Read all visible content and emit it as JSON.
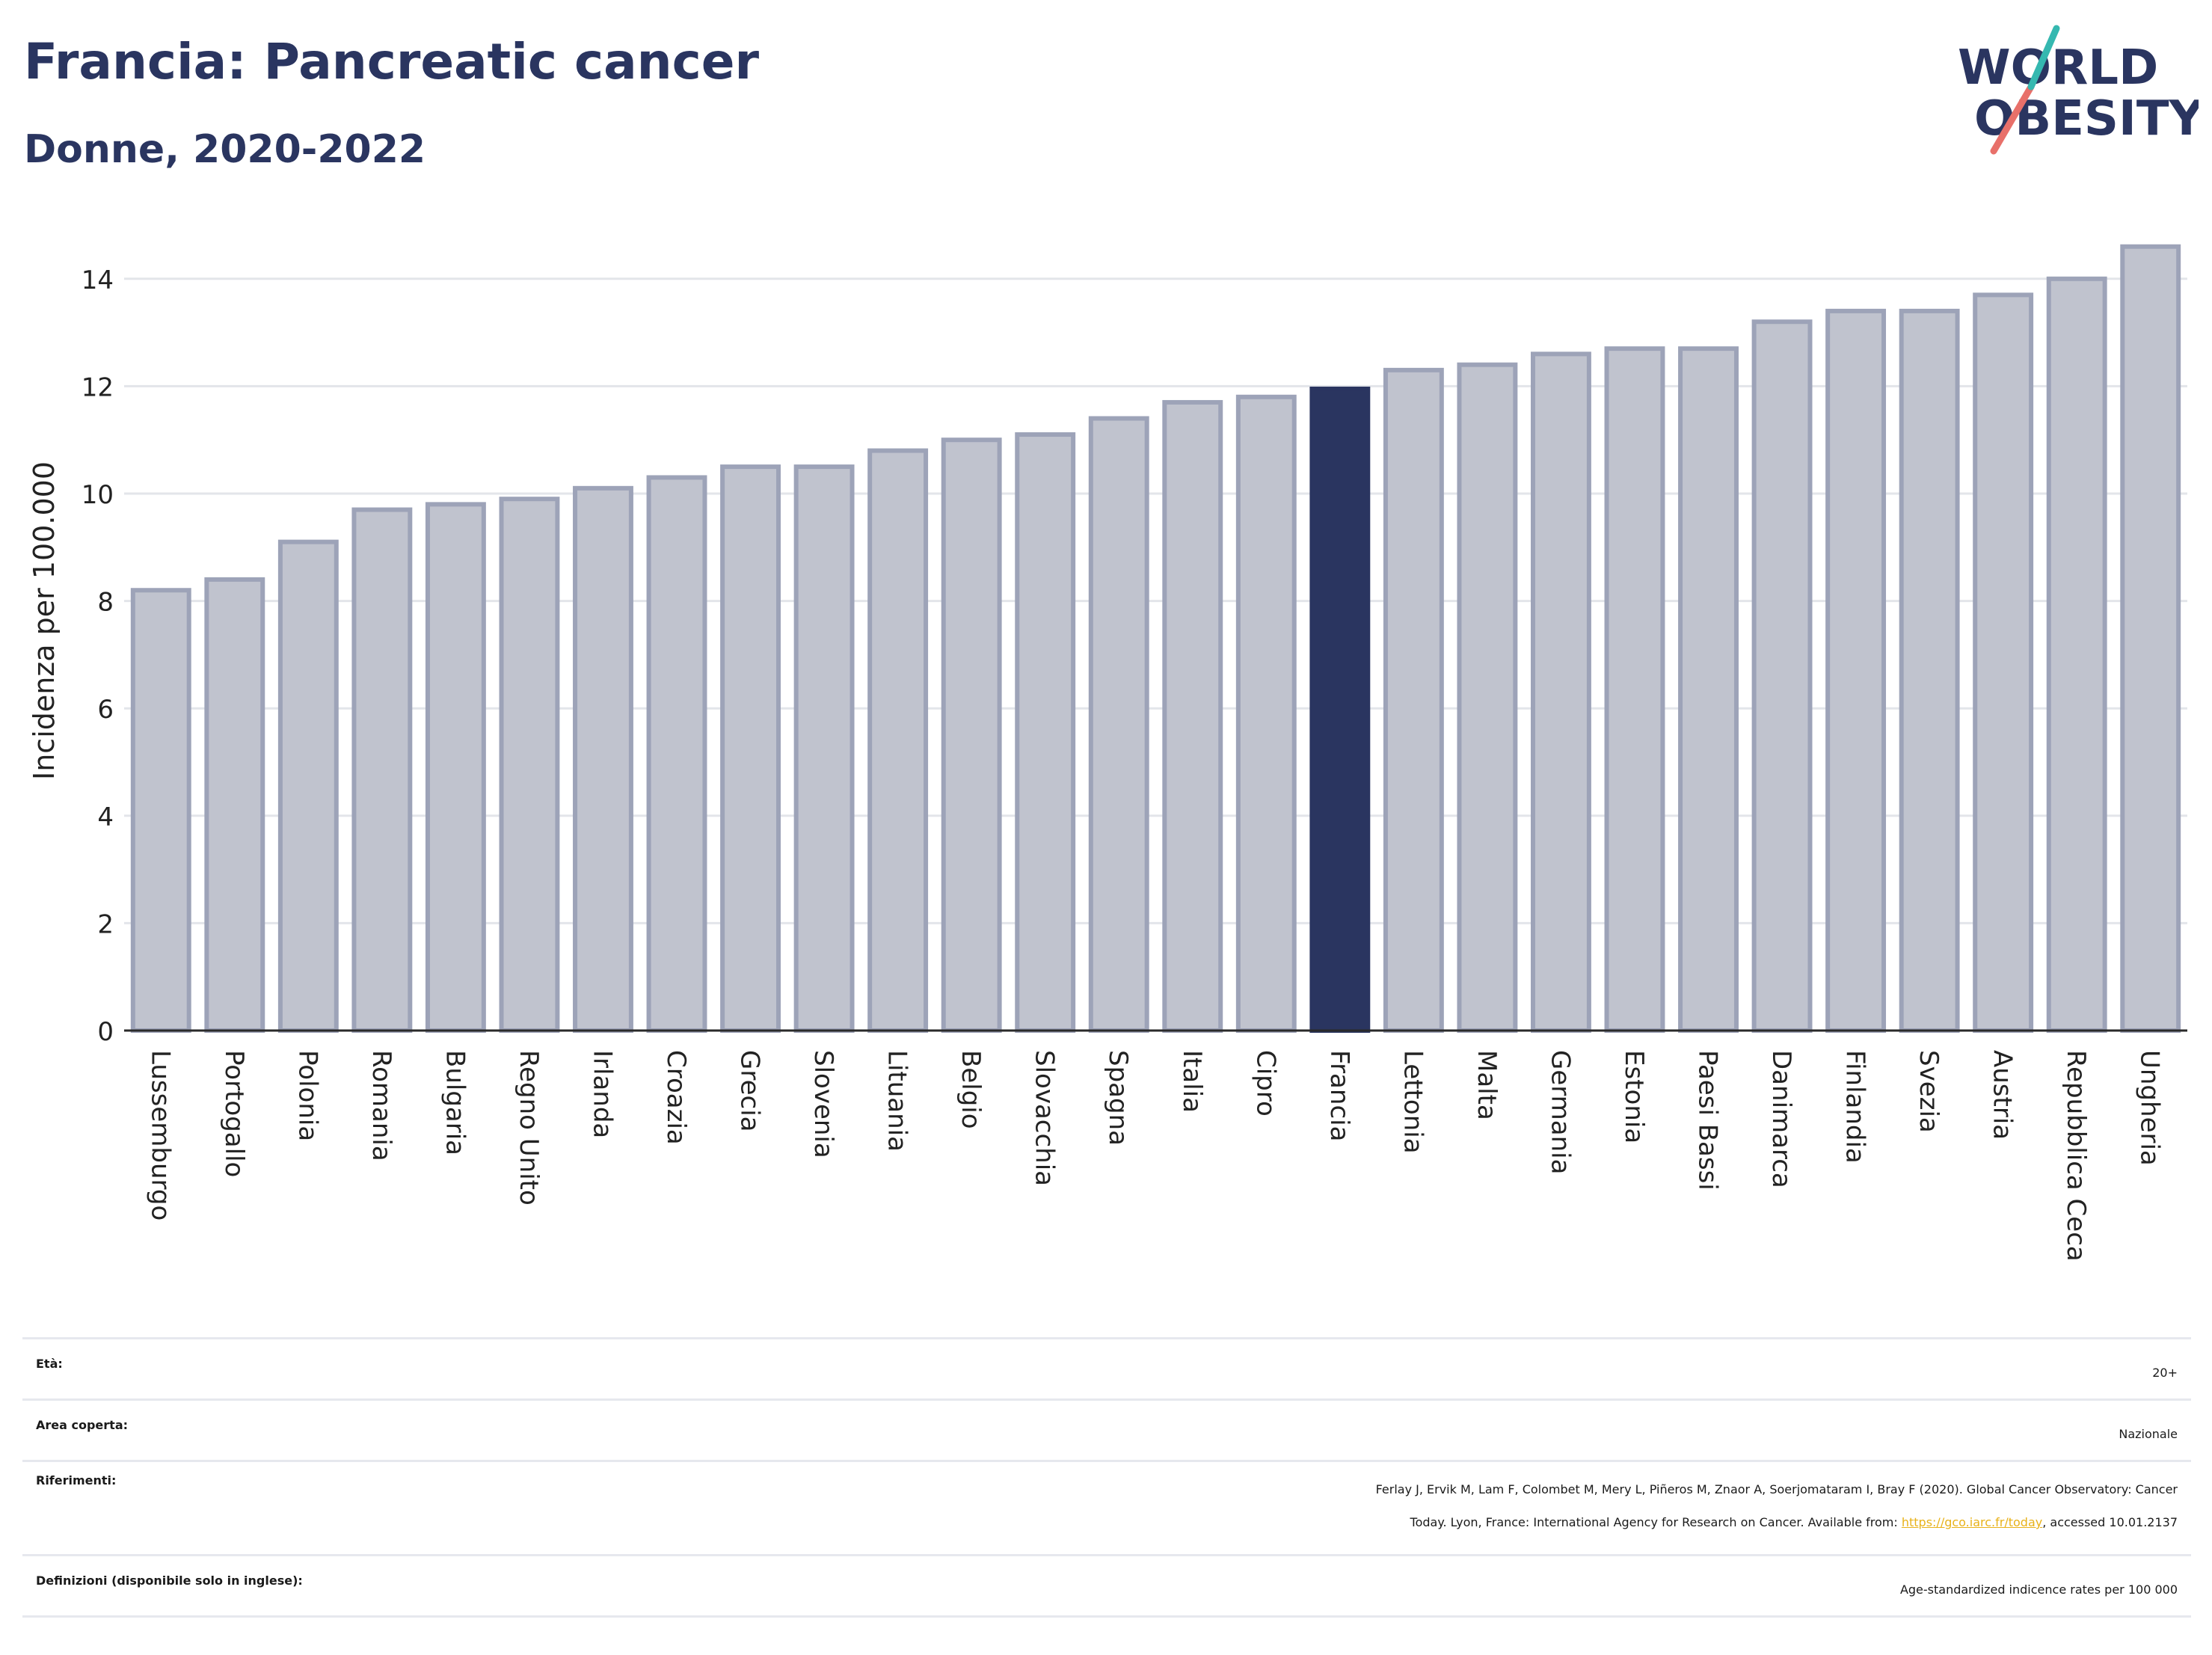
{
  "header": {
    "title": "Francia: Pancreatic cancer",
    "subtitle": "Donne, 2020-2022"
  },
  "logo": {
    "line1": "WORLD",
    "line2": "OBESITY"
  },
  "colors": {
    "bar": "#c0c3ce",
    "bar_stroke": "#9da3b8",
    "highlight": "#2a3560",
    "grid": "#e3e5ea",
    "axis": "#2a2a2a"
  },
  "chart_data": {
    "type": "bar",
    "categories": [
      "Lussemburgo",
      "Portogallo",
      "Polonia",
      "Romania",
      "Bulgaria",
      "Regno Unito",
      "Irlanda",
      "Croazia",
      "Grecia",
      "Slovenia",
      "Lituania",
      "Belgio",
      "Slovacchia",
      "Spagna",
      "Italia",
      "Cipro",
      "Francia",
      "Lettonia",
      "Malta",
      "Germania",
      "Estonia",
      "Paesi Bassi",
      "Danimarca",
      "Finlandia",
      "Svezia",
      "Austria",
      "Repubblica Ceca",
      "Ungheria"
    ],
    "values": [
      8.2,
      8.4,
      9.1,
      9.7,
      9.8,
      9.9,
      10.1,
      10.3,
      10.5,
      10.5,
      10.8,
      11.0,
      11.1,
      11.4,
      11.7,
      11.8,
      11.95,
      12.3,
      12.4,
      12.6,
      12.7,
      12.7,
      13.2,
      13.4,
      13.4,
      13.7,
      14.0,
      14.6
    ],
    "highlight": "Francia",
    "ylabel": "Incidenza per 100.000",
    "xlabel": "",
    "ylim": [
      0,
      15
    ],
    "yticks": [
      0,
      2,
      4,
      6,
      8,
      10,
      12,
      14
    ],
    "grid": true
  },
  "info": {
    "age": {
      "label": "Età:",
      "value": "20+"
    },
    "area": {
      "label": "Area coperta:",
      "value": "Nazionale"
    },
    "refs": {
      "label": "Riferimenti:",
      "line1": "Ferlay J, Ervik M, Lam F, Colombet M, Mery L, Piñeros M, Znaor A, Soerjomataram I, Bray F (2020). Global Cancer Observatory: Cancer",
      "line2_pre": "Today. Lyon, France: International Agency for Research on Cancer. Available from: ",
      "link": "https://gco.iarc.fr/today",
      "line2_post": ", accessed 10.01.2137"
    },
    "defs": {
      "label": "Definizioni (disponibile solo in inglese):",
      "value": "Age-standardized indicence rates per 100 000"
    }
  }
}
